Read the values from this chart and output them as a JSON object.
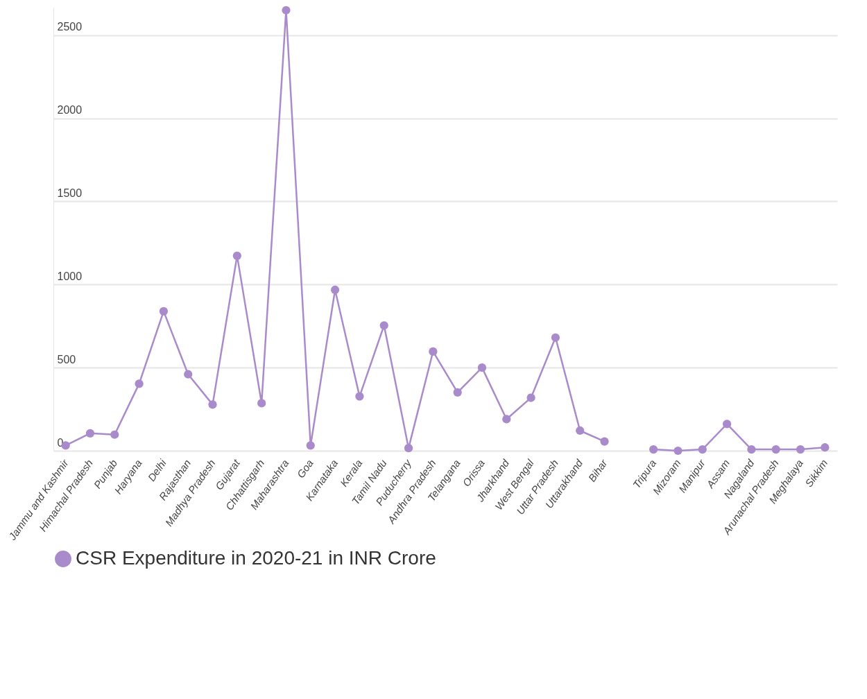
{
  "chart_data": {
    "type": "line",
    "categories": [
      "Jammu and Kashmir",
      "Himachal Pradesh",
      "Punjab",
      "Haryana",
      "Delhi",
      "Rajasthan",
      "Madhya Pradesh",
      "Gujarat",
      "Chhattisgarh",
      "Maharashtra",
      "Goa",
      "Karnataka",
      "Kerala",
      "Tamil Nadu",
      "Puducherry",
      "Andhra Pradesh",
      "Telangana",
      "Orissa",
      "Jharkhand",
      "West Bengal",
      "Uttar Pradesh",
      "Uttarakhand",
      "Bihar",
      null,
      "Tripura",
      "Mizoram",
      "Manipur",
      "Assam",
      "Nagaland",
      "Arunachal Pradesh",
      "Meghalaya",
      "Sikkim"
    ],
    "series": [
      {
        "name": "CSR Expenditure in 2020-21 in INR Crore",
        "color": "#a98bcb",
        "values": [
          32,
          105,
          97,
          403,
          839,
          460,
          278,
          1173,
          286,
          2650,
          32,
          968,
          327,
          754,
          16,
          597,
          351,
          500,
          190,
          319,
          681,
          121,
          56,
          null,
          8,
          0,
          8,
          161,
          8,
          8,
          8,
          20
        ]
      }
    ],
    "ylim": [
      0,
      2670
    ],
    "yticks": [
      0,
      500,
      1000,
      1500,
      2000,
      2500
    ],
    "grid": "y",
    "legend": "bottom",
    "marker": "circle",
    "line_style": "solid"
  }
}
